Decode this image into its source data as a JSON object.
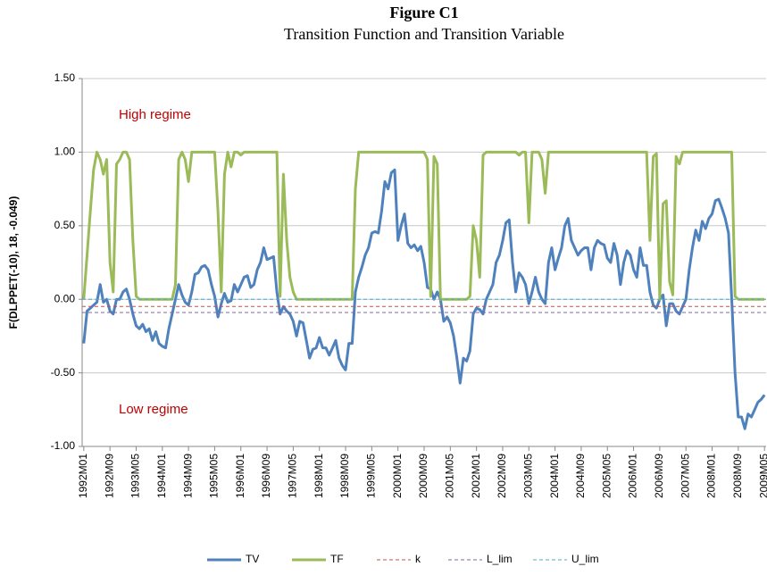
{
  "chart_data": {
    "type": "line",
    "title": "Figure C1",
    "subtitle": "Transition Function and Transition Variable",
    "y_label": "F(DLPPET(-10), 18, -0.049)",
    "annotations": [
      "High regime",
      "Low regime"
    ],
    "ylim": [
      -1.0,
      1.5
    ],
    "yticks": [
      {
        "value": -1.0,
        "label": "-1.00"
      },
      {
        "value": -0.5,
        "label": "-0.50"
      },
      {
        "value": 0.0,
        "label": "0.00"
      },
      {
        "value": 0.5,
        "label": "0.50"
      },
      {
        "value": 1.0,
        "label": "1.00"
      },
      {
        "value": 1.5,
        "label": "1.50"
      }
    ],
    "grid": true,
    "legend": "bottom",
    "categories": [
      "1992M01",
      null,
      null,
      null,
      null,
      null,
      null,
      null,
      "1992M09",
      null,
      null,
      null,
      null,
      null,
      null,
      null,
      "1993M05",
      null,
      null,
      null,
      null,
      null,
      null,
      null,
      "1994M01",
      null,
      null,
      null,
      null,
      null,
      null,
      null,
      "1994M09",
      null,
      null,
      null,
      null,
      null,
      null,
      null,
      "1995M05",
      null,
      null,
      null,
      null,
      null,
      null,
      null,
      "1996M01",
      null,
      null,
      null,
      null,
      null,
      null,
      null,
      "1996M09",
      null,
      null,
      null,
      null,
      null,
      null,
      null,
      "1997M05",
      null,
      null,
      null,
      null,
      null,
      null,
      null,
      "1998M01",
      null,
      null,
      null,
      null,
      null,
      null,
      null,
      "1998M09",
      null,
      null,
      null,
      null,
      null,
      null,
      null,
      "1999M05",
      null,
      null,
      null,
      null,
      null,
      null,
      null,
      "2000M01",
      null,
      null,
      null,
      null,
      null,
      null,
      null,
      "2000M09",
      null,
      null,
      null,
      null,
      null,
      null,
      null,
      "2001M05",
      null,
      null,
      null,
      null,
      null,
      null,
      null,
      "2002M01",
      null,
      null,
      null,
      null,
      null,
      null,
      null,
      "2002M09",
      null,
      null,
      null,
      null,
      null,
      null,
      null,
      "2003M05",
      null,
      null,
      null,
      null,
      null,
      null,
      null,
      "2004M01",
      null,
      null,
      null,
      null,
      null,
      null,
      null,
      "2004M09",
      null,
      null,
      null,
      null,
      null,
      null,
      null,
      "2005M05",
      null,
      null,
      null,
      null,
      null,
      null,
      null,
      "2006M01",
      null,
      null,
      null,
      null,
      null,
      null,
      null,
      "2006M09",
      null,
      null,
      null,
      null,
      null,
      null,
      null,
      "2007M05",
      null,
      null,
      null,
      null,
      null,
      null,
      null,
      "2008M01",
      null,
      null,
      null,
      null,
      null,
      null,
      null,
      "2008M09",
      null,
      null,
      null,
      null,
      null,
      null,
      null,
      "2009M05"
    ],
    "series": [
      {
        "name": "TV",
        "color": "#4f81bd",
        "values": [
          -0.3,
          -0.08,
          -0.06,
          -0.04,
          -0.02,
          0.1,
          -0.02,
          0.0,
          -0.08,
          -0.1,
          0.0,
          0.0,
          0.05,
          0.07,
          0.0,
          -0.1,
          -0.18,
          -0.2,
          -0.17,
          -0.22,
          -0.2,
          -0.28,
          -0.22,
          -0.3,
          -0.32,
          -0.33,
          -0.2,
          -0.1,
          0.0,
          0.1,
          0.03,
          -0.02,
          -0.04,
          0.05,
          0.17,
          0.18,
          0.22,
          0.23,
          0.2,
          0.1,
          0.02,
          -0.12,
          -0.03,
          0.04,
          -0.02,
          -0.01,
          0.1,
          0.05,
          0.1,
          0.15,
          0.16,
          0.08,
          0.1,
          0.2,
          0.25,
          0.35,
          0.27,
          0.28,
          0.29,
          0.05,
          -0.1,
          -0.05,
          -0.08,
          -0.1,
          -0.15,
          -0.25,
          -0.15,
          -0.16,
          -0.28,
          -0.4,
          -0.34,
          -0.33,
          -0.26,
          -0.33,
          -0.33,
          -0.38,
          -0.33,
          -0.28,
          -0.4,
          -0.45,
          -0.48,
          -0.3,
          -0.3,
          0.05,
          0.15,
          0.22,
          0.3,
          0.35,
          0.45,
          0.46,
          0.45,
          0.6,
          0.8,
          0.75,
          0.86,
          0.88,
          0.4,
          0.5,
          0.58,
          0.38,
          0.35,
          0.37,
          0.33,
          0.36,
          0.25,
          0.08,
          0.07,
          0.0,
          0.05,
          0.0,
          -0.15,
          -0.12,
          -0.16,
          -0.25,
          -0.4,
          -0.57,
          -0.4,
          -0.42,
          -0.35,
          -0.1,
          -0.06,
          -0.07,
          -0.1,
          0.0,
          0.05,
          0.1,
          0.25,
          0.3,
          0.4,
          0.52,
          0.54,
          0.25,
          0.05,
          0.18,
          0.15,
          0.1,
          -0.03,
          0.05,
          0.15,
          0.05,
          0.0,
          -0.03,
          0.25,
          0.35,
          0.2,
          0.28,
          0.35,
          0.5,
          0.55,
          0.4,
          0.35,
          0.3,
          0.33,
          0.35,
          0.35,
          0.2,
          0.35,
          0.4,
          0.38,
          0.37,
          0.28,
          0.25,
          0.38,
          0.3,
          0.1,
          0.25,
          0.33,
          0.3,
          0.2,
          0.15,
          0.35,
          0.23,
          0.23,
          0.05,
          -0.04,
          -0.06,
          0.0,
          0.03,
          -0.18,
          -0.03,
          -0.03,
          -0.08,
          -0.1,
          -0.05,
          0.0,
          0.2,
          0.35,
          0.47,
          0.4,
          0.53,
          0.48,
          0.55,
          0.58,
          0.67,
          0.68,
          0.62,
          0.55,
          0.45,
          0.0,
          -0.5,
          -0.8,
          -0.8,
          -0.88,
          -0.78,
          -0.8,
          -0.75,
          -0.7,
          -0.68,
          -0.65
        ]
      },
      {
        "name": "TF",
        "color": "#9bbb59",
        "values": [
          0.0,
          0.3,
          0.6,
          0.88,
          1.0,
          0.95,
          0.85,
          0.95,
          0.25,
          0.05,
          0.92,
          0.95,
          1.0,
          1.0,
          0.95,
          0.4,
          0.02,
          0,
          0,
          0,
          0,
          0,
          0,
          0,
          0,
          0,
          0,
          0,
          0.1,
          0.95,
          1.0,
          0.95,
          0.8,
          1.0,
          1.0,
          1.0,
          1,
          1,
          1,
          1,
          1,
          0.6,
          0.05,
          0.85,
          1.0,
          0.9,
          1.0,
          1.0,
          0.98,
          1,
          1,
          1,
          1,
          1,
          1,
          1,
          1,
          1,
          1,
          1,
          0.02,
          0.85,
          0.4,
          0.15,
          0.05,
          0,
          0,
          0,
          0,
          0,
          0,
          0,
          0,
          0,
          0,
          0,
          0,
          0,
          0,
          0,
          0,
          0,
          0,
          0.75,
          1,
          1,
          1,
          1,
          1,
          1,
          1,
          1,
          1,
          1,
          1,
          1,
          1,
          1,
          1,
          1,
          1,
          1,
          1,
          1,
          1,
          0.95,
          0.02,
          0.97,
          0.92,
          0,
          0,
          0,
          0,
          0,
          0,
          0,
          0,
          0,
          0.02,
          0.5,
          0.4,
          0.15,
          0.98,
          1,
          1,
          1,
          1,
          1,
          1,
          1,
          1,
          1,
          1,
          0.98,
          1,
          1,
          0.52,
          1,
          1,
          1,
          0.95,
          0.72,
          1,
          1,
          1,
          1,
          1,
          1,
          1,
          1,
          1,
          1,
          1,
          1,
          1,
          1,
          1,
          1,
          1,
          1,
          1,
          1,
          1,
          1,
          1,
          1,
          1,
          1,
          1,
          1,
          1,
          1,
          1,
          0.4,
          0.97,
          0.99,
          0,
          0.65,
          0.67,
          0.12,
          0.03,
          0.97,
          0.92,
          1,
          1,
          1,
          1,
          1,
          1,
          1,
          1,
          1,
          1,
          1,
          1,
          1,
          1,
          1,
          1,
          0.02,
          0,
          0,
          0,
          0,
          0,
          0,
          0,
          0,
          0
        ]
      },
      {
        "name": "k",
        "color": "#c0504d",
        "dashed": true,
        "value": -0.049
      },
      {
        "name": "L_lim",
        "color": "#8064a2",
        "dashed": true,
        "value": -0.09
      },
      {
        "name": "U_lim",
        "color": "#4bacc6",
        "dashed": true,
        "value": 0.0
      }
    ]
  }
}
